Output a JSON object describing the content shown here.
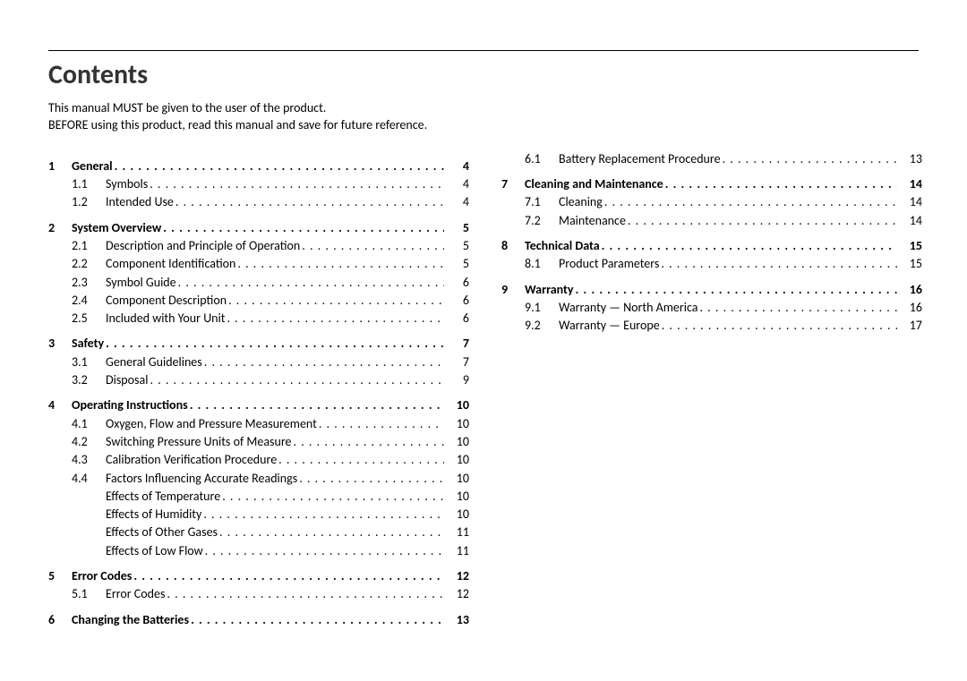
{
  "title": "Contents",
  "intro_line1": "This manual MUST be given to the user of the product.",
  "intro_line2": "BEFORE using this product, read this manual and save for future reference.",
  "left": [
    {
      "type": "section",
      "num": "1",
      "label": "General",
      "page": "4"
    },
    {
      "type": "sub",
      "num": "1.1",
      "label": "Symbols",
      "page": "4"
    },
    {
      "type": "sub",
      "num": "1.2",
      "label": "Intended Use",
      "page": "4"
    },
    {
      "type": "section",
      "num": "2",
      "label": "System Overview",
      "page": "5"
    },
    {
      "type": "sub",
      "num": "2.1",
      "label": "Description and Principle of Operation",
      "page": "5"
    },
    {
      "type": "sub",
      "num": "2.2",
      "label": "Component Identification",
      "page": "5"
    },
    {
      "type": "sub",
      "num": "2.3",
      "label": "Symbol Guide",
      "page": "6"
    },
    {
      "type": "sub",
      "num": "2.4",
      "label": "Component Description",
      "page": "6"
    },
    {
      "type": "sub",
      "num": "2.5",
      "label": "Included with Your Unit",
      "page": "6"
    },
    {
      "type": "section",
      "num": "3",
      "label": "Safety",
      "page": "7"
    },
    {
      "type": "sub",
      "num": "3.1",
      "label": "General Guidelines",
      "page": "7"
    },
    {
      "type": "sub",
      "num": "3.2",
      "label": "Disposal",
      "page": "9"
    },
    {
      "type": "section",
      "num": "4",
      "label": "Operating Instructions",
      "page": "10"
    },
    {
      "type": "sub",
      "num": "4.1",
      "label": "Oxygen, Flow and Pressure Measurement",
      "page": "10"
    },
    {
      "type": "sub",
      "num": "4.2",
      "label": "Switching Pressure Units of Measure",
      "page": "10"
    },
    {
      "type": "sub",
      "num": "4.3",
      "label": "Calibration Verification Procedure",
      "page": "10"
    },
    {
      "type": "sub",
      "num": "4.4",
      "label": "Factors Influencing Accurate Readings",
      "page": "10"
    },
    {
      "type": "subsub",
      "label": "Effects of Temperature",
      "page": "10"
    },
    {
      "type": "subsub",
      "label": "Effects of Humidity",
      "page": "10"
    },
    {
      "type": "subsub",
      "label": "Effects of Other Gases",
      "page": "11"
    },
    {
      "type": "subsub",
      "label": "Effects of Low Flow",
      "page": "11"
    },
    {
      "type": "section",
      "num": "5",
      "label": "Error Codes",
      "page": "12"
    },
    {
      "type": "sub",
      "num": "5.1",
      "label": "Error Codes",
      "page": "12"
    },
    {
      "type": "section",
      "num": "6",
      "label": "Changing the Batteries",
      "page": "13"
    }
  ],
  "right": [
    {
      "type": "sub",
      "num": "6.1",
      "label": "Battery Replacement Procedure",
      "page": "13"
    },
    {
      "type": "section",
      "num": "7",
      "label": "Cleaning and Maintenance",
      "page": "14"
    },
    {
      "type": "sub",
      "num": "7.1",
      "label": "Cleaning",
      "page": "14"
    },
    {
      "type": "sub",
      "num": "7.2",
      "label": "Maintenance",
      "page": "14"
    },
    {
      "type": "section",
      "num": "8",
      "label": "Technical Data",
      "page": "15"
    },
    {
      "type": "sub",
      "num": "8.1",
      "label": "Product Parameters",
      "page": "15"
    },
    {
      "type": "section",
      "num": "9",
      "label": "Warranty",
      "page": "16"
    },
    {
      "type": "sub",
      "num": "9.1",
      "label": "Warranty — North America",
      "page": "16"
    },
    {
      "type": "sub",
      "num": "9.2",
      "label": "Warranty — Europe",
      "page": "17"
    }
  ]
}
